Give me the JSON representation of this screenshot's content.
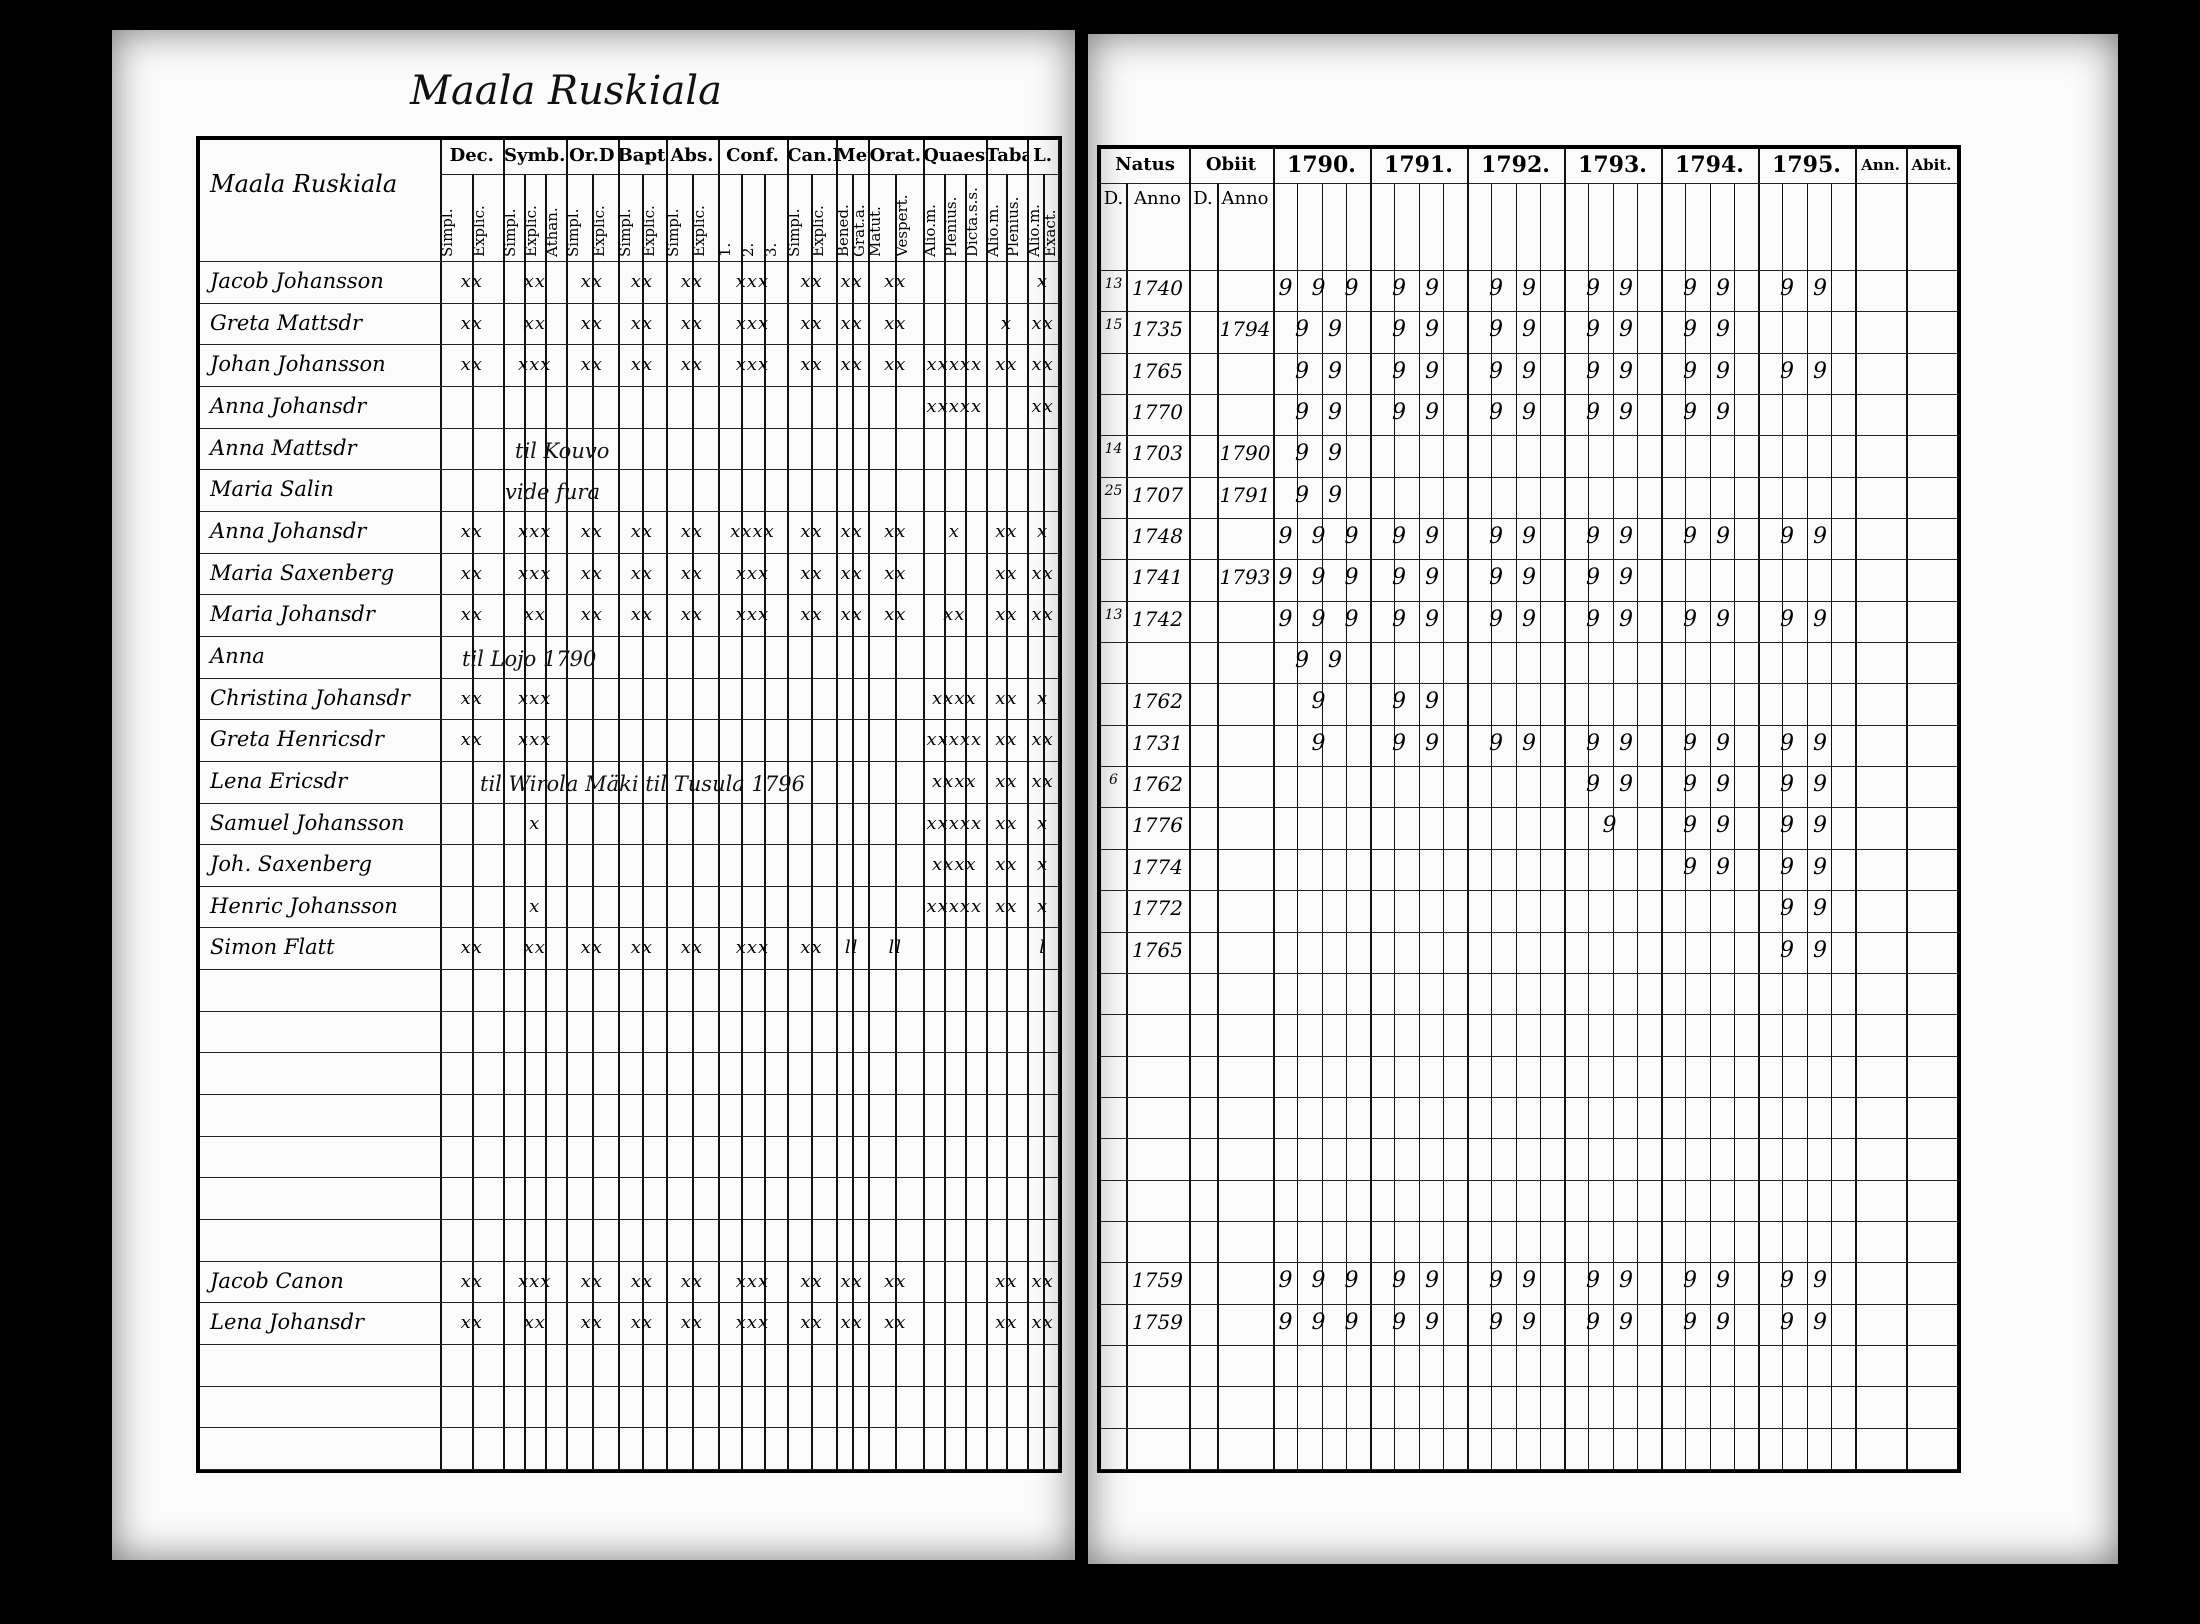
{
  "document": {
    "left_page_title": "Maala Ruskiala",
    "name_column_header": "Maala Ruskiala",
    "left_headers": [
      {
        "label": "Dec.",
        "subs": [
          "Simpl.",
          "Explic."
        ]
      },
      {
        "label": "Symb.",
        "subs": [
          "Simpl.",
          "Explic.",
          "Athan."
        ]
      },
      {
        "label": "Or.D",
        "subs": [
          "Simpl.",
          "Explic."
        ]
      },
      {
        "label": "Bapt.",
        "subs": [
          "Simpl.",
          "Explic."
        ]
      },
      {
        "label": "Abs.",
        "subs": [
          "Simpl.",
          "Explic."
        ]
      },
      {
        "label": "Conf.",
        "subs": [
          "1.",
          "2.",
          "3."
        ]
      },
      {
        "label": "Can.D",
        "subs": [
          "Simpl.",
          "Explic."
        ]
      },
      {
        "label": "Mens.",
        "subs": [
          "Bened.",
          "Grat.a."
        ]
      },
      {
        "label": "Orat.",
        "subs": [
          "Matut.",
          "Vespert."
        ]
      },
      {
        "label": "Quaest.",
        "subs": [
          "Alio.m.",
          "Plenius.",
          "Dicta.s.s."
        ]
      },
      {
        "label": "Taba",
        "subs": [
          "Alio.m.",
          "Plenius."
        ]
      },
      {
        "label": "L.",
        "subs": [
          "Alio.m.",
          "Exact."
        ]
      }
    ],
    "right_headers": {
      "natus": "Natus",
      "obiit": "Obiit",
      "d": "D.",
      "anno": "Anno",
      "years": [
        "1790.",
        "1791.",
        "1792.",
        "1793.",
        "1794.",
        "1795."
      ],
      "ann": "Ann.",
      "abit": "Abit."
    },
    "rows": [
      {
        "name": "Jacob Johansson",
        "marks": [
          "xx",
          "xx",
          "xx",
          "xx",
          "xx",
          "xxx",
          "xx",
          "xx",
          "xx",
          "",
          "",
          "x"
        ],
        "natus_d": "13",
        "natus": "1740",
        "obiit": "",
        "years": [
          "9 9 9",
          "9 9",
          "9 9",
          "9 9",
          "9 9",
          "9 9"
        ]
      },
      {
        "name": "Greta Mattsdr",
        "marks": [
          "xx",
          "xx",
          "xx",
          "xx",
          "xx",
          "xxx",
          "xx",
          "xx",
          "xx",
          "",
          "x",
          "xx"
        ],
        "natus_d": "15",
        "natus": "1735",
        "obiit": "1794",
        "years": [
          "9 9",
          "9 9",
          "9 9",
          "9 9",
          "9 9",
          ""
        ]
      },
      {
        "name": "Johan Johansson",
        "marks": [
          "xx",
          "xxx",
          "xx",
          "xx",
          "xx",
          "xxx",
          "xx",
          "xx",
          "xx",
          "xxxxx",
          "xx",
          "xx"
        ],
        "natus_d": "",
        "natus": "1765",
        "obiit": "",
        "years": [
          "9 9",
          "9 9",
          "9 9",
          "9 9",
          "9 9",
          "9 9"
        ]
      },
      {
        "name": "Anna Johansdr",
        "marks": [
          "",
          "",
          "",
          "",
          "",
          "",
          "",
          "",
          "",
          "xxxxx",
          "",
          "xx"
        ],
        "natus_d": "",
        "natus": "1770",
        "obiit": "",
        "years": [
          "9 9",
          "9 9",
          "9 9",
          "9 9",
          "9 9",
          ""
        ]
      },
      {
        "name": "Anna Mattsdr",
        "marks": [
          "",
          "",
          "",
          "",
          "",
          "",
          "",
          "",
          "",
          "",
          "",
          ""
        ],
        "natus_d": "14",
        "natus": "1703",
        "obiit": "1790",
        "years": [
          "9 9",
          "",
          "",
          "",
          "",
          ""
        ]
      },
      {
        "name": "Maria Salin",
        "marks": [
          "",
          "",
          "",
          "",
          "",
          "",
          "",
          "",
          "",
          "",
          "",
          ""
        ],
        "natus_d": "25",
        "natus": "1707",
        "obiit": "1791",
        "years": [
          "9 9",
          "",
          "",
          "",
          "",
          ""
        ]
      },
      {
        "name": "Anna Johansdr",
        "marks": [
          "xx",
          "xxx",
          "xx",
          "xx",
          "xx",
          "xxxx",
          "xx",
          "xx",
          "xx",
          "x",
          "xx",
          "x"
        ],
        "natus_d": "",
        "natus": "1748",
        "obiit": "",
        "years": [
          "9 9 9",
          "9 9",
          "9 9",
          "9 9",
          "9 9",
          "9 9"
        ]
      },
      {
        "name": "Maria Saxenberg",
        "marks": [
          "xx",
          "xxx",
          "xx",
          "xx",
          "xx",
          "xxx",
          "xx",
          "xx",
          "xx",
          "",
          "xx",
          "xx"
        ],
        "natus_d": "",
        "natus": "1741",
        "obiit": "1793",
        "years": [
          "9 9 9",
          "9 9",
          "9 9",
          "9 9",
          "",
          ""
        ]
      },
      {
        "name": "Maria Johansdr",
        "marks": [
          "xx",
          "xx",
          "xx",
          "xx",
          "xx",
          "xxx",
          "xx",
          "xx",
          "xx",
          "xx",
          "xx",
          "xx"
        ],
        "natus_d": "13",
        "natus": "1742",
        "obiit": "",
        "years": [
          "9 9 9",
          "9 9",
          "9 9",
          "9 9",
          "9 9",
          "9 9"
        ]
      },
      {
        "name": "Anna",
        "marks": [
          "",
          "",
          "",
          "",
          "",
          "",
          "",
          "",
          "",
          "",
          "",
          ""
        ],
        "natus_d": "",
        "natus": "",
        "obiit": "",
        "years": [
          "9 9",
          "",
          "",
          "",
          "",
          ""
        ]
      },
      {
        "name": "Christina Johansdr",
        "marks": [
          "xx",
          "xxx",
          "",
          "",
          "",
          "",
          "",
          "",
          "",
          "xxxx",
          "xx",
          "x"
        ],
        "natus_d": "",
        "natus": "1762",
        "obiit": "",
        "years": [
          "9",
          "9 9",
          "",
          "",
          "",
          ""
        ]
      },
      {
        "name": "Greta Henricsdr",
        "marks": [
          "xx",
          "xxx",
          "",
          "",
          "",
          "",
          "",
          "",
          "",
          "xxxxx",
          "xx",
          "xx"
        ],
        "natus_d": "",
        "natus": "1731",
        "obiit": "",
        "years": [
          "9",
          "9 9",
          "9 9",
          "9 9",
          "9 9",
          "9 9"
        ]
      },
      {
        "name": "Lena Ericsdr",
        "marks": [
          "",
          "",
          "",
          "",
          "",
          "",
          "",
          "",
          "",
          "xxxx",
          "xx",
          "xx"
        ],
        "natus_d": "6",
        "natus": "1762",
        "obiit": "",
        "years": [
          "",
          "",
          "",
          "9 9",
          "9 9",
          "9 9"
        ]
      },
      {
        "name": "Samuel Johansson",
        "marks": [
          "",
          "x",
          "",
          "",
          "",
          "",
          "",
          "",
          "",
          "xxxxx",
          "xx",
          "x"
        ],
        "natus_d": "",
        "natus": "1776",
        "obiit": "",
        "years": [
          "",
          "",
          "",
          "9",
          "9 9",
          "9 9"
        ]
      },
      {
        "name": "Joh. Saxenberg",
        "marks": [
          "",
          "",
          "",
          "",
          "",
          "",
          "",
          "",
          "",
          "xxxx",
          "xx",
          "x"
        ],
        "natus_d": "",
        "natus": "1774",
        "obiit": "",
        "years": [
          "",
          "",
          "",
          "",
          "9 9",
          "9 9"
        ]
      },
      {
        "name": "Henric Johansson",
        "marks": [
          "",
          "x",
          "",
          "",
          "",
          "",
          "",
          "",
          "",
          "xxxxx",
          "xx",
          "x"
        ],
        "natus_d": "",
        "natus": "1772",
        "obiit": "",
        "years": [
          "",
          "",
          "",
          "",
          "",
          "9 9"
        ]
      },
      {
        "name": "Simon Flatt",
        "marks": [
          "xx",
          "xx",
          "xx",
          "xx",
          "xx",
          "xxx",
          "xx",
          "ll",
          "ll",
          "",
          "",
          "l"
        ],
        "natus_d": "",
        "natus": "1765",
        "obiit": "",
        "years": [
          "",
          "",
          "",
          "",
          "",
          "9 9"
        ]
      },
      {
        "name": "",
        "marks": [],
        "natus_d": "",
        "natus": "",
        "obiit": "",
        "years": []
      },
      {
        "name": "",
        "marks": [],
        "natus_d": "",
        "natus": "",
        "obiit": "",
        "years": []
      },
      {
        "name": "",
        "marks": [],
        "natus_d": "",
        "natus": "",
        "obiit": "",
        "years": []
      },
      {
        "name": "",
        "marks": [],
        "natus_d": "",
        "natus": "",
        "obiit": "",
        "years": []
      },
      {
        "name": "",
        "marks": [],
        "natus_d": "",
        "natus": "",
        "obiit": "",
        "years": []
      },
      {
        "name": "",
        "marks": [],
        "natus_d": "",
        "natus": "",
        "obiit": "",
        "years": []
      },
      {
        "name": "",
        "marks": [],
        "natus_d": "",
        "natus": "",
        "obiit": "",
        "years": []
      },
      {
        "name": "Jacob Canon",
        "marks": [
          "xx",
          "xxx",
          "xx",
          "xx",
          "xx",
          "xxx",
          "xx",
          "xx",
          "xx",
          "",
          "xx",
          "xx"
        ],
        "natus_d": "",
        "natus": "1759",
        "obiit": "",
        "years": [
          "9 9 9",
          "9 9",
          "9 9",
          "9 9",
          "9 9",
          "9 9"
        ]
      },
      {
        "name": "Lena Johansdr",
        "marks": [
          "xx",
          "xx",
          "xx",
          "xx",
          "xx",
          "xxx",
          "xx",
          "xx",
          "xx",
          "",
          "xx",
          "xx"
        ],
        "natus_d": "",
        "natus": "1759",
        "obiit": "",
        "years": [
          "9 9 9",
          "9 9",
          "9 9",
          "9 9",
          "9 9",
          "9 9"
        ]
      },
      {
        "name": "",
        "marks": [],
        "natus_d": "",
        "natus": "",
        "obiit": "",
        "years": []
      },
      {
        "name": "",
        "marks": [],
        "natus_d": "",
        "natus": "",
        "obiit": "",
        "years": []
      },
      {
        "name": "",
        "marks": [],
        "natus_d": "",
        "natus": "",
        "obiit": "",
        "years": []
      }
    ],
    "notes": [
      "vide fura",
      "til Lojo 1790",
      "til Kouvo",
      "til Wirola Mäki til Tusula 1796"
    ]
  }
}
